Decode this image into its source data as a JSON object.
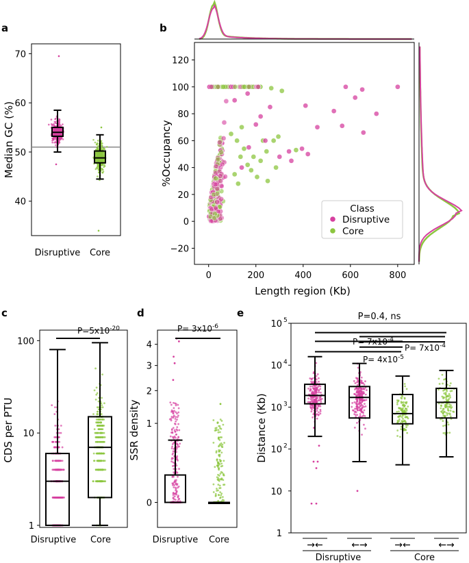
{
  "colors": {
    "disruptive": "#d6409f",
    "core": "#8cc63f",
    "dark": "#000000"
  },
  "chart_data": [
    {
      "panel": "a",
      "type": "box-strip",
      "ylabel": "Median GC (%)",
      "categories": [
        "Disruptive",
        "Core"
      ],
      "yticks": [
        "40",
        "50",
        "60",
        "70"
      ],
      "ylim": [
        33,
        72
      ],
      "reference_line": 51,
      "boxes": [
        {
          "name": "Disruptive",
          "q1": 53.2,
          "median": 54.0,
          "q3": 55.0,
          "whisker_low": 50.0,
          "whisker_high": 58.5,
          "min": 47.5,
          "max": 69.5
        },
        {
          "name": "Core",
          "q1": 47.8,
          "median": 48.8,
          "q3": 50.2,
          "whisker_low": 44.5,
          "whisker_high": 53.5,
          "min": 34.0,
          "max": 55.0
        }
      ]
    },
    {
      "panel": "b",
      "type": "scatter",
      "xlabel": "Length region (Kb)",
      "ylabel": "%Occupancy",
      "xlim": [
        -60,
        870
      ],
      "ylim": [
        -32,
        133
      ],
      "xticks": [
        "0",
        "200",
        "400",
        "600",
        "800"
      ],
      "yticks": [
        "−20",
        "0",
        "20",
        "40",
        "60",
        "80",
        "100",
        "120"
      ],
      "legend": {
        "title": "Class",
        "entries": [
          "Disruptive",
          "Core"
        ],
        "location": "lower-right"
      },
      "outliers_disruptive": [
        [
          580,
          100
        ],
        [
          650,
          98
        ],
        [
          800,
          100
        ],
        [
          620,
          92
        ],
        [
          410,
          86
        ],
        [
          530,
          82
        ],
        [
          710,
          80
        ],
        [
          565,
          71
        ],
        [
          655,
          66
        ],
        [
          460,
          70
        ],
        [
          340,
          52
        ],
        [
          395,
          54
        ],
        [
          240,
          60
        ],
        [
          300,
          48
        ],
        [
          350,
          45
        ],
        [
          200,
          72
        ],
        [
          165,
          95
        ],
        [
          260,
          85
        ],
        [
          220,
          78
        ],
        [
          140,
          40
        ],
        [
          110,
          90
        ],
        [
          170,
          55
        ],
        [
          420,
          50
        ]
      ],
      "outliers_core": [
        [
          370,
          53
        ],
        [
          295,
          63
        ],
        [
          275,
          60
        ],
        [
          265,
          99
        ],
        [
          230,
          60
        ],
        [
          220,
          45
        ],
        [
          190,
          48
        ],
        [
          180,
          38
        ],
        [
          150,
          54
        ],
        [
          120,
          60
        ],
        [
          95,
          65
        ],
        [
          135,
          48
        ],
        [
          110,
          35
        ],
        [
          165,
          42
        ],
        [
          205,
          33
        ],
        [
          250,
          30
        ],
        [
          285,
          40
        ],
        [
          310,
          97
        ],
        [
          140,
          70
        ],
        [
          245,
          52
        ],
        [
          125,
          28
        ]
      ],
      "marginal_top_peak_kb": 20,
      "marginal_right_peak_pct": 5
    },
    {
      "panel": "c",
      "type": "box-strip-log",
      "ylabel": "CDS per PTU",
      "categories": [
        "Disruptive",
        "Core"
      ],
      "yticks": [
        "1",
        "10",
        "100"
      ],
      "ylim": [
        0.95,
        130
      ],
      "significance": "P=5x10",
      "significance_exp": "-20",
      "boxes": [
        {
          "name": "Disruptive",
          "q1": 1,
          "median": 3,
          "q3": 6,
          "whisker_low": 1,
          "whisker_high": 80,
          "max": 80
        },
        {
          "name": "Core",
          "q1": 2,
          "median": 7,
          "q3": 15,
          "whisker_low": 1,
          "whisker_high": 95,
          "max": 100
        }
      ]
    },
    {
      "panel": "d",
      "type": "box-strip-sqrt",
      "ylabel": "SSR density",
      "categories": [
        "Disruptive",
        "Core"
      ],
      "yticks": [
        "0",
        "1",
        "2",
        "3",
        "4"
      ],
      "ylim": [
        -0.1,
        4.75
      ],
      "significance": "P= 3x10",
      "significance_exp": "-6",
      "boxes": [
        {
          "name": "Disruptive",
          "q1": 0,
          "median": 0,
          "q3": 0.12,
          "whisker_low": 0,
          "whisker_high": 0.62,
          "max": 4.3
        },
        {
          "name": "Core",
          "q1": 0,
          "median": 0,
          "q3": 0,
          "whisker_low": 0,
          "whisker_high": 0,
          "max": 1.55
        }
      ]
    },
    {
      "panel": "e",
      "type": "box-strip-log",
      "ylabel": "Distance (Kb)",
      "yticks": [
        "1",
        "10",
        "10",
        "10",
        "10",
        "10"
      ],
      "ytick_exps": [
        "",
        "",
        "2",
        "3",
        "4",
        "5"
      ],
      "ylim": [
        1,
        100000
      ],
      "group_labels": [
        "Disruptive",
        "Core"
      ],
      "orientation_labels": [
        "→←",
        "←→",
        "→←",
        "←→"
      ],
      "boxes": [
        {
          "name": "Disruptive →←",
          "q1": 1200,
          "median": 1900,
          "q3": 3500,
          "whisker_low": 200,
          "whisker_high": 16000
        },
        {
          "name": "Disruptive ←→",
          "q1": 550,
          "median": 1700,
          "q3": 3100,
          "whisker_low": 50,
          "whisker_high": 11000
        },
        {
          "name": "Core →←",
          "q1": 400,
          "median": 700,
          "q3": 2000,
          "whisker_low": 42,
          "whisker_high": 5500
        },
        {
          "name": "Core ←→",
          "q1": 550,
          "median": 1300,
          "q3": 2800,
          "whisker_low": 65,
          "whisker_high": 7500
        }
      ],
      "significance": [
        {
          "label": "P=0.4, ns",
          "exp": "",
          "from": 0,
          "to": 3,
          "level": 60000
        },
        {
          "label": "",
          "exp": "",
          "from": 1,
          "to": 3,
          "level": 48000
        },
        {
          "label": "P= 7x10",
          "exp": "-4",
          "from": 0,
          "to": 2,
          "level": 37000
        },
        {
          "label": "P= 7x10",
          "exp": "-4",
          "from": 1,
          "to": 3,
          "level": 36000
        },
        {
          "label": "",
          "exp": "",
          "from": 1,
          "to": 2,
          "level": 27000
        },
        {
          "label": "P= 4x10",
          "exp": "-5",
          "from": 0,
          "to": 2,
          "level": 21000
        }
      ]
    }
  ]
}
